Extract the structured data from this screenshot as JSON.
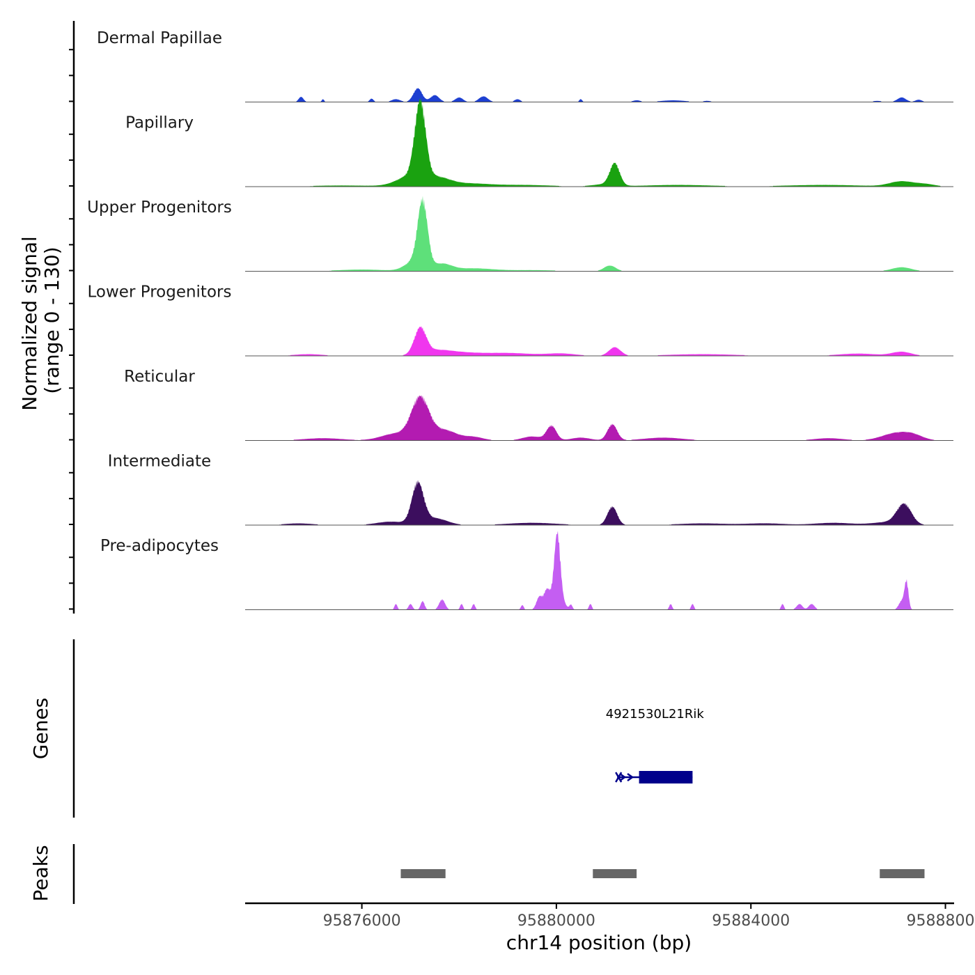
{
  "chart_data": {
    "type": "area",
    "title": "",
    "xlabel": "chr14 position (bp)",
    "ylabel": "Normalized signal\n(range 0 - 130)",
    "signal_range": [
      0,
      130
    ],
    "xlim": [
      95873600,
      95888150
    ],
    "x_ticks": [
      95876000,
      95880000,
      95884000,
      95888000
    ],
    "x_tick_labels": [
      "95876000",
      "95880000",
      "95884000",
      "95888000"
    ],
    "tracks": [
      {
        "name": "Dermal Papillae",
        "color": "#1d3fd1",
        "peaks": [
          [
            95874750,
            9,
            50
          ],
          [
            95875200,
            5,
            25
          ],
          [
            95876200,
            6,
            40
          ],
          [
            95876700,
            5,
            90
          ],
          [
            95877150,
            24,
            90
          ],
          [
            95877500,
            12,
            90
          ],
          [
            95878000,
            8,
            80
          ],
          [
            95878500,
            10,
            90
          ],
          [
            95879200,
            5,
            60
          ],
          [
            95880500,
            5,
            30
          ],
          [
            95881650,
            3,
            80
          ],
          [
            95882400,
            3,
            250
          ],
          [
            95883100,
            2,
            80
          ],
          [
            95886600,
            2,
            100
          ],
          [
            95887100,
            8,
            90
          ],
          [
            95887450,
            4,
            70
          ]
        ]
      },
      {
        "name": "Papillary",
        "color": "#1aa210",
        "peaks": [
          [
            95877200,
            130,
            110
          ],
          [
            95877050,
            20,
            300
          ],
          [
            95877600,
            12,
            250
          ],
          [
            95878200,
            5,
            400
          ],
          [
            95881200,
            38,
            100
          ],
          [
            95881000,
            4,
            250
          ],
          [
            95882500,
            3,
            700
          ],
          [
            95885500,
            3,
            800
          ],
          [
            95887100,
            9,
            250
          ],
          [
            95887600,
            4,
            200
          ],
          [
            95879300,
            3,
            600
          ],
          [
            95875600,
            2,
            700
          ]
        ]
      },
      {
        "name": "Upper Progenitors",
        "color": "#5ee07a",
        "peaks": [
          [
            95877250,
            110,
            100
          ],
          [
            95877100,
            18,
            200
          ],
          [
            95877650,
            12,
            200
          ],
          [
            95878300,
            5,
            400
          ],
          [
            95881100,
            10,
            120
          ],
          [
            95887100,
            7,
            200
          ],
          [
            95876000,
            3,
            500
          ],
          [
            95879500,
            2,
            500
          ]
        ]
      },
      {
        "name": "Lower Progenitors",
        "color": "#f036ee",
        "peaks": [
          [
            95877200,
            45,
            120
          ],
          [
            95877500,
            8,
            300
          ],
          [
            95878000,
            5,
            400
          ],
          [
            95879000,
            5,
            500
          ],
          [
            95881200,
            15,
            120
          ],
          [
            95880100,
            4,
            300
          ],
          [
            95883000,
            3,
            700
          ],
          [
            95886200,
            4,
            400
          ],
          [
            95887100,
            7,
            200
          ],
          [
            95874900,
            3,
            300
          ]
        ]
      },
      {
        "name": "Reticular",
        "color": "#b31bb1",
        "peaks": [
          [
            95877200,
            72,
            180
          ],
          [
            95876700,
            12,
            300
          ],
          [
            95877700,
            18,
            250
          ],
          [
            95879900,
            25,
            100
          ],
          [
            95881150,
            28,
            100
          ],
          [
            95879500,
            7,
            200
          ],
          [
            95880500,
            5,
            200
          ],
          [
            95882200,
            5,
            400
          ],
          [
            95885600,
            4,
            300
          ],
          [
            95887000,
            13,
            300
          ],
          [
            95887350,
            6,
            200
          ],
          [
            95875200,
            4,
            400
          ],
          [
            95878300,
            6,
            200
          ]
        ]
      },
      {
        "name": "Intermediate",
        "color": "#3c0e5e",
        "peaks": [
          [
            95877150,
            70,
            120
          ],
          [
            95876600,
            6,
            300
          ],
          [
            95877500,
            12,
            250
          ],
          [
            95881150,
            32,
            100
          ],
          [
            95879500,
            4,
            500
          ],
          [
            95887150,
            35,
            150
          ],
          [
            95886800,
            5,
            300
          ],
          [
            95885700,
            4,
            400
          ],
          [
            95883000,
            3,
            500
          ],
          [
            95884300,
            3,
            400
          ],
          [
            95874700,
            3,
            300
          ]
        ]
      },
      {
        "name": "Pre-adipocytes",
        "color": "#c45ef2",
        "peaks": [
          [
            95876700,
            10,
            30
          ],
          [
            95877000,
            10,
            40
          ],
          [
            95877250,
            15,
            40
          ],
          [
            95877650,
            18,
            60
          ],
          [
            95878050,
            10,
            30
          ],
          [
            95878300,
            10,
            30
          ],
          [
            95879300,
            8,
            30
          ],
          [
            95879650,
            22,
            60
          ],
          [
            95879800,
            28,
            60
          ],
          [
            95880020,
            105,
            60
          ],
          [
            95880000,
            30,
            120
          ],
          [
            95880300,
            8,
            30
          ],
          [
            95880700,
            10,
            30
          ],
          [
            95882350,
            10,
            30
          ],
          [
            95882800,
            10,
            30
          ],
          [
            95884650,
            10,
            30
          ],
          [
            95885000,
            10,
            60
          ],
          [
            95885250,
            10,
            60
          ],
          [
            95887100,
            15,
            60
          ],
          [
            95887200,
            48,
            40
          ]
        ]
      }
    ],
    "genes": [
      {
        "name": "4921530L21Rik",
        "start": 95881250,
        "end": 95882800,
        "thick_start": 95881700,
        "thick_end": 95882800,
        "strand": "+"
      }
    ],
    "gene_track_label": "Genes",
    "peaks_track_label": "Peaks",
    "peak_regions": [
      [
        95876800,
        95877720
      ],
      [
        95880750,
        95881650
      ],
      [
        95886650,
        95887570
      ]
    ],
    "colors": {
      "axis": "#000000",
      "baseline": "#555555",
      "gene": "#00008b",
      "peak_region": "#666666",
      "tick_label": "#4d4d4d",
      "text": "#1a1a1a"
    }
  }
}
